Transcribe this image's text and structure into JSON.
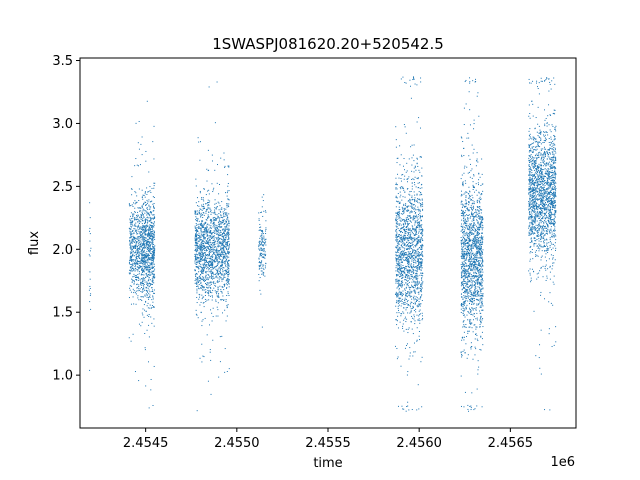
{
  "chart_data": {
    "type": "scatter",
    "title": "1SWASPJ081620.20+520542.5",
    "xlabel": "time",
    "ylabel": "flux",
    "x_offset_label": "1e6",
    "xlim": [
      2454140,
      2456860
    ],
    "ylim": [
      0.58,
      3.52
    ],
    "grid": false,
    "legend": "none",
    "marker_color": "#1f77b4",
    "x_ticks": [
      {
        "value": 2454500,
        "label": "2.4545"
      },
      {
        "value": 2455000,
        "label": "2.4550"
      },
      {
        "value": 2455500,
        "label": "2.4555"
      },
      {
        "value": 2456000,
        "label": "2.4560"
      },
      {
        "value": 2456500,
        "label": "2.4565"
      }
    ],
    "y_ticks": [
      {
        "value": 1.0,
        "label": "1.0"
      },
      {
        "value": 1.5,
        "label": "1.5"
      },
      {
        "value": 2.0,
        "label": "2.0"
      },
      {
        "value": 2.5,
        "label": "2.5"
      },
      {
        "value": 3.0,
        "label": "3.0"
      },
      {
        "value": 3.5,
        "label": "3.5"
      }
    ],
    "clusters": [
      {
        "x_start": 2454190,
        "x_end": 2454200,
        "y_center": 2.0,
        "spread": 0.3,
        "n": 20
      },
      {
        "x_start": 2454410,
        "x_end": 2454480,
        "y_center": 2.0,
        "spread": 0.18,
        "n": 500
      },
      {
        "x_start": 2454480,
        "x_end": 2454550,
        "y_center": 2.0,
        "spread": 0.22,
        "n": 800
      },
      {
        "x_start": 2454770,
        "x_end": 2454960,
        "y_center": 2.0,
        "spread": 0.2,
        "n": 1600
      },
      {
        "x_start": 2455120,
        "x_end": 2455160,
        "y_center": 2.0,
        "spread": 0.13,
        "n": 150
      },
      {
        "x_start": 2455870,
        "x_end": 2456020,
        "y_center": 1.98,
        "spread": 0.3,
        "n": 1500
      },
      {
        "x_start": 2456230,
        "x_end": 2456350,
        "y_center": 1.93,
        "spread": 0.3,
        "n": 1500
      },
      {
        "x_start": 2456600,
        "x_end": 2456750,
        "y_center": 2.45,
        "spread": 0.25,
        "n": 1700
      }
    ]
  }
}
